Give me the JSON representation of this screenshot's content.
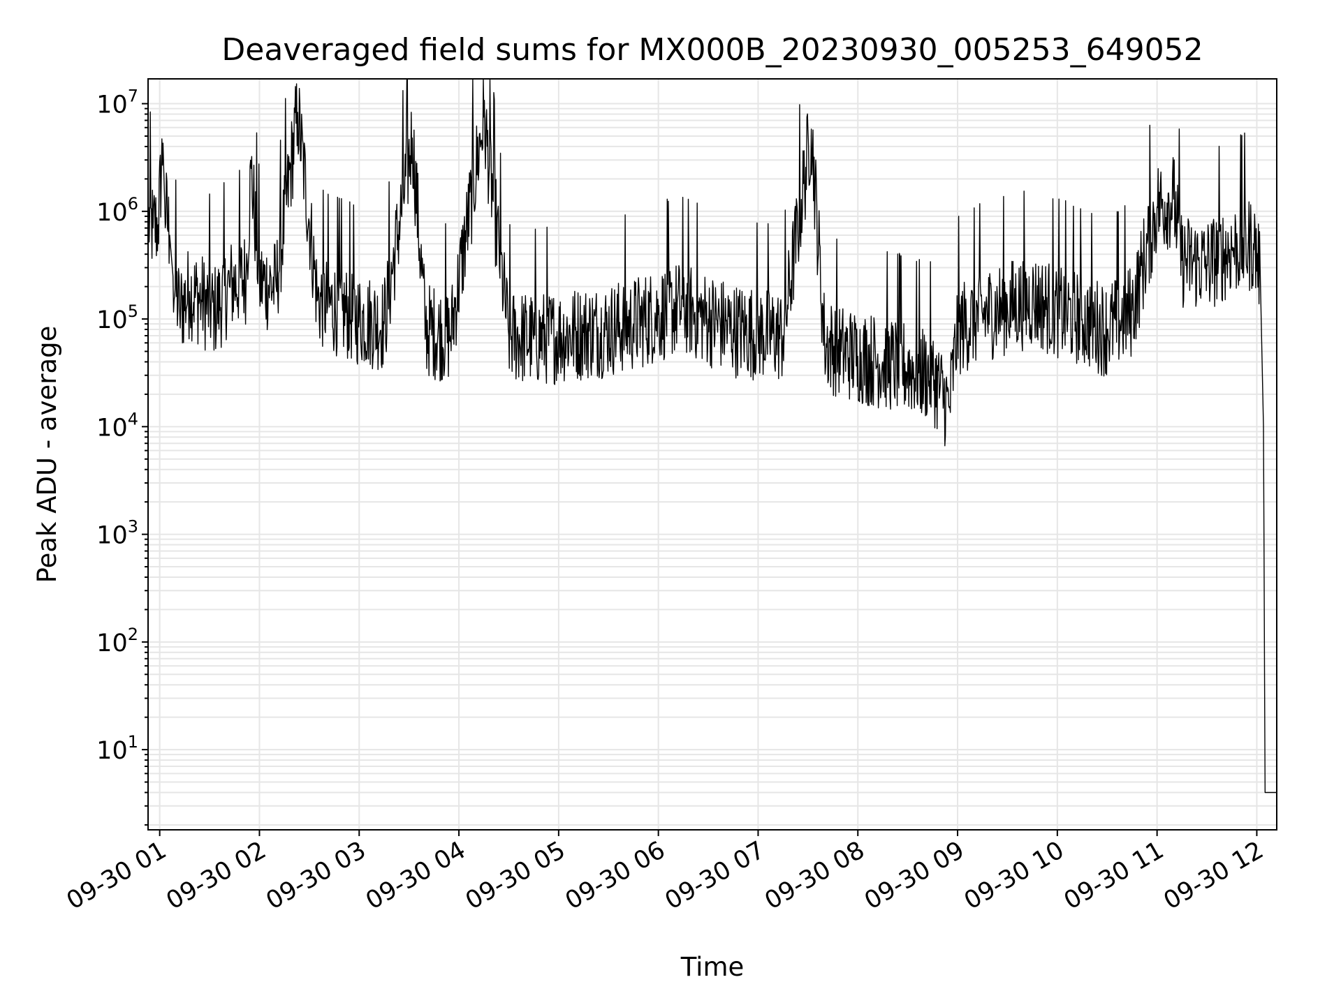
{
  "chart_data": {
    "type": "line",
    "title": "Deaveraged field sums for MX000B_20230930_005253_649052",
    "xlabel": "Time",
    "ylabel": "Peak ADU - average",
    "yscale": "log",
    "ylim": [
      1.8,
      17000000
    ],
    "xlim": [
      "2023-09-30 00:53",
      "2023-09-30 12:12"
    ],
    "grid": true,
    "line_color": "#000000",
    "x_ticks": [
      {
        "x": "2023-09-30 01:00",
        "label": "09-30 01"
      },
      {
        "x": "2023-09-30 02:00",
        "label": "09-30 02"
      },
      {
        "x": "2023-09-30 03:00",
        "label": "09-30 03"
      },
      {
        "x": "2023-09-30 04:00",
        "label": "09-30 04"
      },
      {
        "x": "2023-09-30 05:00",
        "label": "09-30 05"
      },
      {
        "x": "2023-09-30 06:00",
        "label": "09-30 06"
      },
      {
        "x": "2023-09-30 07:00",
        "label": "09-30 07"
      },
      {
        "x": "2023-09-30 08:00",
        "label": "09-30 08"
      },
      {
        "x": "2023-09-30 09:00",
        "label": "09-30 09"
      },
      {
        "x": "2023-09-30 10:00",
        "label": "09-30 10"
      },
      {
        "x": "2023-09-30 11:00",
        "label": "09-30 11"
      },
      {
        "x": "2023-09-30 12:00",
        "label": "09-30 12"
      }
    ],
    "y_ticks": [
      {
        "value": 10,
        "base": "10",
        "exp": "1"
      },
      {
        "value": 100,
        "base": "10",
        "exp": "2"
      },
      {
        "value": 1000,
        "base": "10",
        "exp": "3"
      },
      {
        "value": 10000,
        "base": "10",
        "exp": "4"
      },
      {
        "value": 100000,
        "base": "10",
        "exp": "5"
      },
      {
        "value": 1000000,
        "base": "10",
        "exp": "6"
      },
      {
        "value": 10000000,
        "base": "10",
        "exp": "7"
      }
    ],
    "series": [
      {
        "values": [
          [
            "2023-09-30 00:53",
            800000
          ],
          [
            "2023-09-30 00:56",
            700000
          ],
          [
            "2023-09-30 00:59",
            750000
          ],
          [
            "2023-09-30 01:02",
            4300000
          ],
          [
            "2023-09-30 01:03",
            1200000
          ],
          [
            "2023-09-30 01:06",
            600000
          ],
          [
            "2023-09-30 01:08",
            250000
          ],
          [
            "2023-09-30 01:12",
            120000
          ],
          [
            "2023-09-30 01:18",
            180000
          ],
          [
            "2023-09-30 01:25",
            150000
          ],
          [
            "2023-09-30 01:33",
            120000
          ],
          [
            "2023-09-30 01:42",
            200000
          ],
          [
            "2023-09-30 01:52",
            250000
          ],
          [
            "2023-09-30 01:55",
            2500000
          ],
          [
            "2023-09-30 02:00",
            220000
          ],
          [
            "2023-09-30 02:10",
            200000
          ],
          [
            "2023-09-30 02:23",
            8300000
          ],
          [
            "2023-09-30 02:35",
            150000
          ],
          [
            "2023-09-30 02:50",
            120000
          ],
          [
            "2023-09-30 03:00",
            100000
          ],
          [
            "2023-09-30 03:15",
            90000
          ],
          [
            "2023-09-30 03:32",
            4800000
          ],
          [
            "2023-09-30 03:40",
            80000
          ],
          [
            "2023-09-30 03:55",
            70000
          ],
          [
            "2023-09-30 04:15",
            7500000
          ],
          [
            "2023-09-30 04:30",
            70000
          ],
          [
            "2023-09-30 04:45",
            65000
          ],
          [
            "2023-09-30 05:00",
            70000
          ],
          [
            "2023-09-30 05:15",
            75000
          ],
          [
            "2023-09-30 05:30",
            80000
          ],
          [
            "2023-09-30 05:45",
            90000
          ],
          [
            "2023-09-30 06:00",
            110000
          ],
          [
            "2023-09-30 06:15",
            130000
          ],
          [
            "2023-09-30 06:30",
            100000
          ],
          [
            "2023-09-30 06:45",
            80000
          ],
          [
            "2023-09-30 07:00",
            75000
          ],
          [
            "2023-09-30 07:15",
            70000
          ],
          [
            "2023-09-30 07:32",
            5800000
          ],
          [
            "2023-09-30 07:40",
            60000
          ],
          [
            "2023-09-30 07:50",
            50000
          ],
          [
            "2023-09-30 08:00",
            45000
          ],
          [
            "2023-09-30 08:15",
            40000
          ],
          [
            "2023-09-30 08:30",
            35000
          ],
          [
            "2023-09-30 08:45",
            30000
          ],
          [
            "2023-09-30 08:55",
            15000
          ],
          [
            "2023-09-30 09:00",
            80000
          ],
          [
            "2023-09-30 09:15",
            110000
          ],
          [
            "2023-09-30 09:30",
            130000
          ],
          [
            "2023-09-30 09:45",
            150000
          ],
          [
            "2023-09-30 10:00",
            120000
          ],
          [
            "2023-09-30 10:15",
            100000
          ],
          [
            "2023-09-30 10:30",
            80000
          ],
          [
            "2023-09-30 10:45",
            120000
          ],
          [
            "2023-09-30 10:50",
            250000
          ],
          [
            "2023-09-30 11:00",
            1100000
          ],
          [
            "2023-09-30 11:10",
            1300000
          ],
          [
            "2023-09-30 11:15",
            350000
          ],
          [
            "2023-09-30 11:30",
            320000
          ],
          [
            "2023-09-30 11:45",
            450000
          ],
          [
            "2023-09-30 11:58",
            500000
          ],
          [
            "2023-09-30 12:02",
            300000
          ],
          [
            "2023-09-30 12:04",
            10000
          ],
          [
            "2023-09-30 12:05",
            4
          ],
          [
            "2023-09-30 12:12",
            4
          ]
        ]
      }
    ]
  }
}
